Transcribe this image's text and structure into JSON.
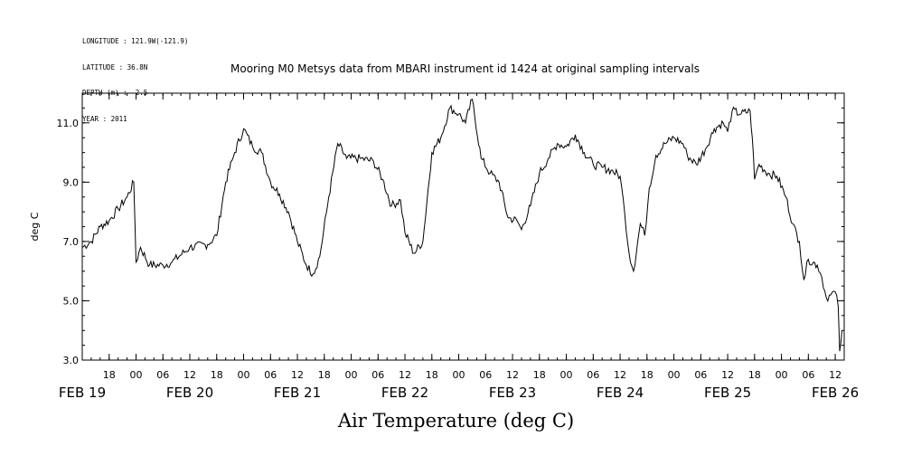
{
  "header": {
    "longitude": "LONGITUDE : 121.9W(-121.9)",
    "latitude": "LATITUDE : 36.8N",
    "depth": "DEPTH (m) : -2.5",
    "year": "YEAR : 2011"
  },
  "chart_data": {
    "type": "line",
    "title": "Mooring M0 Metsys data from MBARI instrument id 1424 at original sampling intervals",
    "xlabel": "Air Temperature (deg C)",
    "ylabel": "deg C",
    "x_start": "2011-02-19T12:00",
    "x_end": "2011-02-26T14:00",
    "ylim": [
      3.0,
      12.0
    ],
    "y_ticks": [
      "3.0",
      "5.0",
      "7.0",
      "9.0",
      "11.0"
    ],
    "hour_ticks": [
      {
        "t": "2011-02-19T18:00",
        "label": "18"
      },
      {
        "t": "2011-02-20T00:00",
        "label": "00"
      },
      {
        "t": "2011-02-20T06:00",
        "label": "06"
      },
      {
        "t": "2011-02-20T12:00",
        "label": "12"
      },
      {
        "t": "2011-02-20T18:00",
        "label": "18"
      },
      {
        "t": "2011-02-21T00:00",
        "label": "00"
      },
      {
        "t": "2011-02-21T06:00",
        "label": "06"
      },
      {
        "t": "2011-02-21T12:00",
        "label": "12"
      },
      {
        "t": "2011-02-21T18:00",
        "label": "18"
      },
      {
        "t": "2011-02-22T00:00",
        "label": "00"
      },
      {
        "t": "2011-02-22T06:00",
        "label": "06"
      },
      {
        "t": "2011-02-22T12:00",
        "label": "12"
      },
      {
        "t": "2011-02-22T18:00",
        "label": "18"
      },
      {
        "t": "2011-02-23T00:00",
        "label": "00"
      },
      {
        "t": "2011-02-23T06:00",
        "label": "06"
      },
      {
        "t": "2011-02-23T12:00",
        "label": "12"
      },
      {
        "t": "2011-02-23T18:00",
        "label": "18"
      },
      {
        "t": "2011-02-24T00:00",
        "label": "00"
      },
      {
        "t": "2011-02-24T06:00",
        "label": "06"
      },
      {
        "t": "2011-02-24T12:00",
        "label": "12"
      },
      {
        "t": "2011-02-24T18:00",
        "label": "18"
      },
      {
        "t": "2011-02-25T00:00",
        "label": "00"
      },
      {
        "t": "2011-02-25T06:00",
        "label": "06"
      },
      {
        "t": "2011-02-25T12:00",
        "label": "12"
      },
      {
        "t": "2011-02-25T18:00",
        "label": "18"
      },
      {
        "t": "2011-02-26T00:00",
        "label": "00"
      },
      {
        "t": "2011-02-26T06:00",
        "label": "06"
      },
      {
        "t": "2011-02-26T12:00",
        "label": "12"
      }
    ],
    "date_labels": [
      {
        "t": "2011-02-19T12:00",
        "label": "FEB 19"
      },
      {
        "t": "2011-02-20T12:00",
        "label": "FEB 20"
      },
      {
        "t": "2011-02-21T12:00",
        "label": "FEB 21"
      },
      {
        "t": "2011-02-22T12:00",
        "label": "FEB 22"
      },
      {
        "t": "2011-02-23T12:00",
        "label": "FEB 23"
      },
      {
        "t": "2011-02-24T12:00",
        "label": "FEB 24"
      },
      {
        "t": "2011-02-25T12:00",
        "label": "FEB 25"
      },
      {
        "t": "2011-02-26T12:00",
        "label": "FEB 26"
      }
    ],
    "series": [
      {
        "values": [
          [
            "2011-02-19T12:00",
            6.8
          ],
          [
            "2011-02-19T14:00",
            7.0
          ],
          [
            "2011-02-19T16:00",
            7.5
          ],
          [
            "2011-02-19T18:00",
            7.7
          ],
          [
            "2011-02-19T20:00",
            8.1
          ],
          [
            "2011-02-19T22:00",
            8.5
          ],
          [
            "2011-02-19T23:30",
            9.0
          ],
          [
            "2011-02-20T00:00",
            6.3
          ],
          [
            "2011-02-20T01:00",
            6.8
          ],
          [
            "2011-02-20T03:00",
            6.2
          ],
          [
            "2011-02-20T06:00",
            6.2
          ],
          [
            "2011-02-20T08:00",
            6.3
          ],
          [
            "2011-02-20T12:00",
            6.8
          ],
          [
            "2011-02-20T16:00",
            6.9
          ],
          [
            "2011-02-20T18:00",
            7.2
          ],
          [
            "2011-02-20T20:00",
            9.0
          ],
          [
            "2011-02-20T22:00",
            10.0
          ],
          [
            "2011-02-21T00:00",
            10.8
          ],
          [
            "2011-02-21T02:00",
            10.2
          ],
          [
            "2011-02-21T04:00",
            10.0
          ],
          [
            "2011-02-21T06:00",
            9.0
          ],
          [
            "2011-02-21T08:00",
            8.6
          ],
          [
            "2011-02-21T10:00",
            8.0
          ],
          [
            "2011-02-21T12:00",
            7.0
          ],
          [
            "2011-02-21T14:00",
            6.2
          ],
          [
            "2011-02-21T15:30",
            5.9
          ],
          [
            "2011-02-21T17:00",
            6.5
          ],
          [
            "2011-02-21T19:00",
            8.5
          ],
          [
            "2011-02-21T21:00",
            10.3
          ],
          [
            "2011-02-21T23:00",
            9.8
          ],
          [
            "2011-02-22T02:00",
            9.8
          ],
          [
            "2011-02-22T05:00",
            9.7
          ],
          [
            "2011-02-22T07:00",
            9.1
          ],
          [
            "2011-02-22T09:00",
            8.2
          ],
          [
            "2011-02-22T11:00",
            8.4
          ],
          [
            "2011-02-22T12:00",
            7.3
          ],
          [
            "2011-02-22T14:00",
            6.6
          ],
          [
            "2011-02-22T16:00",
            7.0
          ],
          [
            "2011-02-22T18:00",
            10.0
          ],
          [
            "2011-02-22T20:00",
            10.5
          ],
          [
            "2011-02-22T22:00",
            11.5
          ],
          [
            "2011-02-23T00:00",
            11.3
          ],
          [
            "2011-02-23T01:30",
            11.0
          ],
          [
            "2011-02-23T03:00",
            11.8
          ],
          [
            "2011-02-23T05:00",
            9.8
          ],
          [
            "2011-02-23T07:00",
            9.3
          ],
          [
            "2011-02-23T09:00",
            9.0
          ],
          [
            "2011-02-23T11:00",
            7.8
          ],
          [
            "2011-02-23T13:00",
            7.7
          ],
          [
            "2011-02-23T14:00",
            7.4
          ],
          [
            "2011-02-23T16:00",
            8.2
          ],
          [
            "2011-02-23T18:00",
            9.3
          ],
          [
            "2011-02-23T20:00",
            9.8
          ],
          [
            "2011-02-23T22:00",
            10.3
          ],
          [
            "2011-02-24T00:00",
            10.2
          ],
          [
            "2011-02-24T02:00",
            10.6
          ],
          [
            "2011-02-24T04:00",
            10.0
          ],
          [
            "2011-02-24T06:00",
            9.6
          ],
          [
            "2011-02-24T08:00",
            9.5
          ],
          [
            "2011-02-24T10:00",
            9.4
          ],
          [
            "2011-02-24T12:00",
            9.2
          ],
          [
            "2011-02-24T13:00",
            8.0
          ],
          [
            "2011-02-24T14:00",
            6.6
          ],
          [
            "2011-02-24T15:00",
            6.0
          ],
          [
            "2011-02-24T16:30",
            7.6
          ],
          [
            "2011-02-24T17:30",
            7.2
          ],
          [
            "2011-02-24T18:30",
            8.8
          ],
          [
            "2011-02-24T20:00",
            9.9
          ],
          [
            "2011-02-24T22:00",
            10.3
          ],
          [
            "2011-02-25T00:00",
            10.5
          ],
          [
            "2011-02-25T02:00",
            10.3
          ],
          [
            "2011-02-25T03:00",
            9.9
          ],
          [
            "2011-02-25T05:00",
            9.6
          ],
          [
            "2011-02-25T07:00",
            10.1
          ],
          [
            "2011-02-25T09:00",
            10.8
          ],
          [
            "2011-02-25T11:00",
            11.0
          ],
          [
            "2011-02-25T12:00",
            10.7
          ],
          [
            "2011-02-25T13:00",
            11.4
          ],
          [
            "2011-02-25T15:00",
            11.3
          ],
          [
            "2011-02-25T17:00",
            11.4
          ],
          [
            "2011-02-25T17:30",
            10.5
          ],
          [
            "2011-02-25T18:00",
            9.1
          ],
          [
            "2011-02-25T19:00",
            9.6
          ],
          [
            "2011-02-25T21:00",
            9.3
          ],
          [
            "2011-02-25T23:00",
            9.2
          ],
          [
            "2011-02-26T01:00",
            8.5
          ],
          [
            "2011-02-26T02:30",
            7.6
          ],
          [
            "2011-02-26T04:00",
            7.0
          ],
          [
            "2011-02-26T05:00",
            5.7
          ],
          [
            "2011-02-26T06:00",
            6.4
          ],
          [
            "2011-02-26T08:00",
            6.2
          ],
          [
            "2011-02-26T09:00",
            5.8
          ],
          [
            "2011-02-26T10:00",
            5.1
          ],
          [
            "2011-02-26T11:00",
            5.2
          ],
          [
            "2011-02-26T12:00",
            5.3
          ],
          [
            "2011-02-26T12:40",
            4.8
          ],
          [
            "2011-02-26T13:00",
            3.3
          ],
          [
            "2011-02-26T13:30",
            4.0
          ]
        ]
      }
    ]
  }
}
